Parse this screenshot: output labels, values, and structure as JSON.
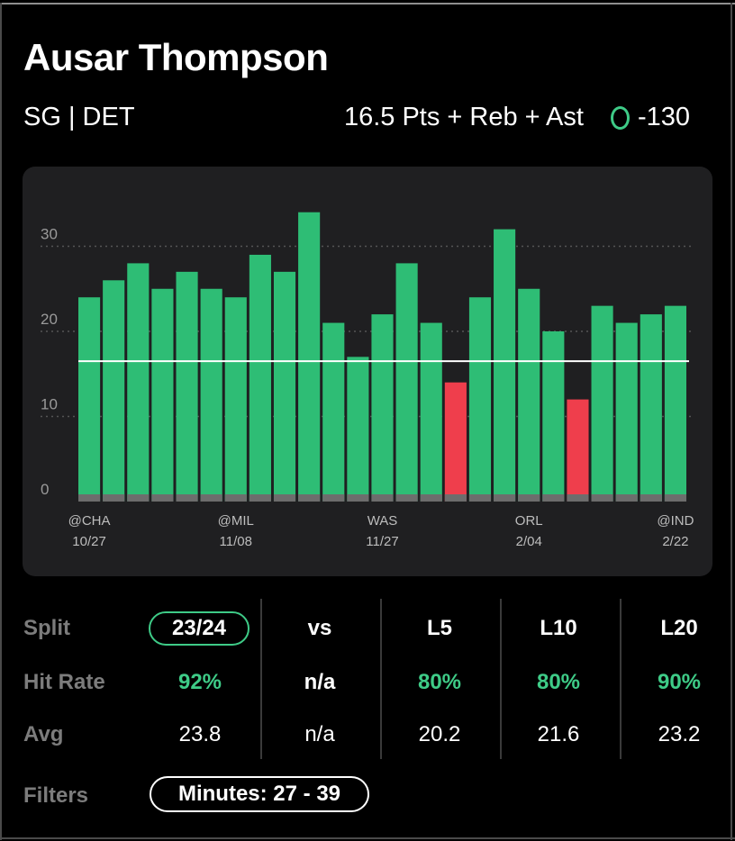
{
  "header": {
    "player_name": "Ausar Thompson",
    "position_team": "SG | DET",
    "prop": "16.5 Pts + Reb + Ast",
    "odds": "-130"
  },
  "colors": {
    "hit": "#2ebd75",
    "miss": "#ef3e4c",
    "accent": "#3ecb87",
    "card": "#1f1f21"
  },
  "chart_data": {
    "type": "bar",
    "title": "",
    "xlabel": "",
    "ylabel": "",
    "ylim": [
      0,
      35
    ],
    "yticks": [
      0,
      10,
      20,
      30
    ],
    "grid": true,
    "threshold": 16.5,
    "values": [
      24,
      26,
      28,
      25,
      27,
      25,
      24,
      29,
      27,
      34,
      21,
      17,
      22,
      28,
      21,
      14,
      24,
      32,
      25,
      20,
      12,
      23,
      21,
      22,
      23
    ],
    "xtick_labels": [
      {
        "index": 0,
        "opponent": "@CHA",
        "date": "10/27"
      },
      {
        "index": 6,
        "opponent": "@MIL",
        "date": "11/08"
      },
      {
        "index": 12,
        "opponent": "WAS",
        "date": "11/27"
      },
      {
        "index": 18,
        "opponent": "ORL",
        "date": "2/04"
      },
      {
        "index": 24,
        "opponent": "@IND",
        "date": "2/22"
      }
    ]
  },
  "stats": {
    "split_label": "Split",
    "split_value": "23/24",
    "columns": [
      "vs",
      "L5",
      "L10",
      "L20"
    ],
    "hit_rate_label": "Hit Rate",
    "hit_rate": [
      "92%",
      "n/a",
      "80%",
      "80%",
      "90%"
    ],
    "avg_label": "Avg",
    "avg": [
      "23.8",
      "n/a",
      "20.2",
      "21.6",
      "23.2"
    ]
  },
  "filters": {
    "label": "Filters",
    "minutes": "Minutes: 27 - 39"
  }
}
